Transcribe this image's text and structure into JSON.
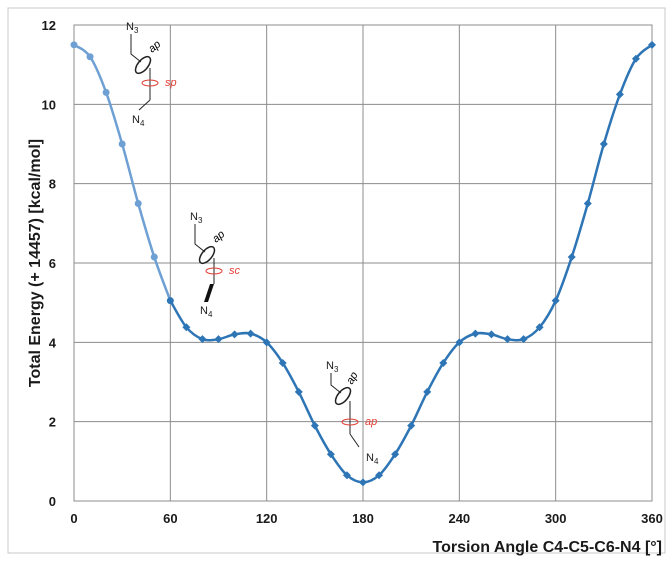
{
  "chart_data": {
    "type": "line",
    "title": "",
    "xlabel": "Torsion Angle C4-C5-C6-N4  [°]",
    "ylabel": "Total Energy (+ 14457)  [kcal/mol]",
    "xlim": [
      0,
      360
    ],
    "ylim": [
      0,
      12
    ],
    "xticks": [
      0,
      60,
      120,
      180,
      240,
      300,
      360
    ],
    "yticks": [
      0,
      2,
      4,
      6,
      8,
      10,
      12
    ],
    "grid": true,
    "legend": "none",
    "series": [
      {
        "color": "#2e75b6",
        "light_color": "#6fa0d4",
        "x": [
          0,
          10,
          20,
          30,
          40,
          50,
          60,
          70,
          80,
          90,
          100,
          110,
          120,
          130,
          140,
          150,
          160,
          170,
          180,
          190,
          200,
          210,
          220,
          230,
          240,
          250,
          260,
          270,
          280,
          290,
          300,
          310,
          320,
          330,
          340,
          350,
          360
        ],
        "y": [
          11.5,
          11.2,
          10.3,
          9.0,
          7.5,
          6.15,
          5.05,
          4.38,
          4.08,
          4.08,
          4.2,
          4.22,
          4.0,
          3.48,
          2.75,
          1.9,
          1.18,
          0.65,
          0.47,
          0.65,
          1.18,
          1.9,
          2.75,
          3.48,
          4.0,
          4.22,
          4.2,
          4.08,
          4.08,
          4.38,
          5.05,
          6.15,
          7.5,
          9.0,
          10.25,
          11.15,
          11.5
        ]
      }
    ],
    "annotations": [
      {
        "id": "conf1",
        "top": "N",
        "top_sub": "3",
        "bottom": "N",
        "bottom_sub": "4",
        "ring_label": "ap",
        "rot_label": "sp"
      },
      {
        "id": "conf2",
        "top": "N",
        "top_sub": "3",
        "bottom": "N",
        "bottom_sub": "4",
        "ring_label": "ap",
        "rot_label": "sc"
      },
      {
        "id": "conf3",
        "top": "N",
        "top_sub": "3",
        "bottom": "N",
        "bottom_sub": "4",
        "ring_label": "ap",
        "rot_label": "ap"
      }
    ]
  }
}
